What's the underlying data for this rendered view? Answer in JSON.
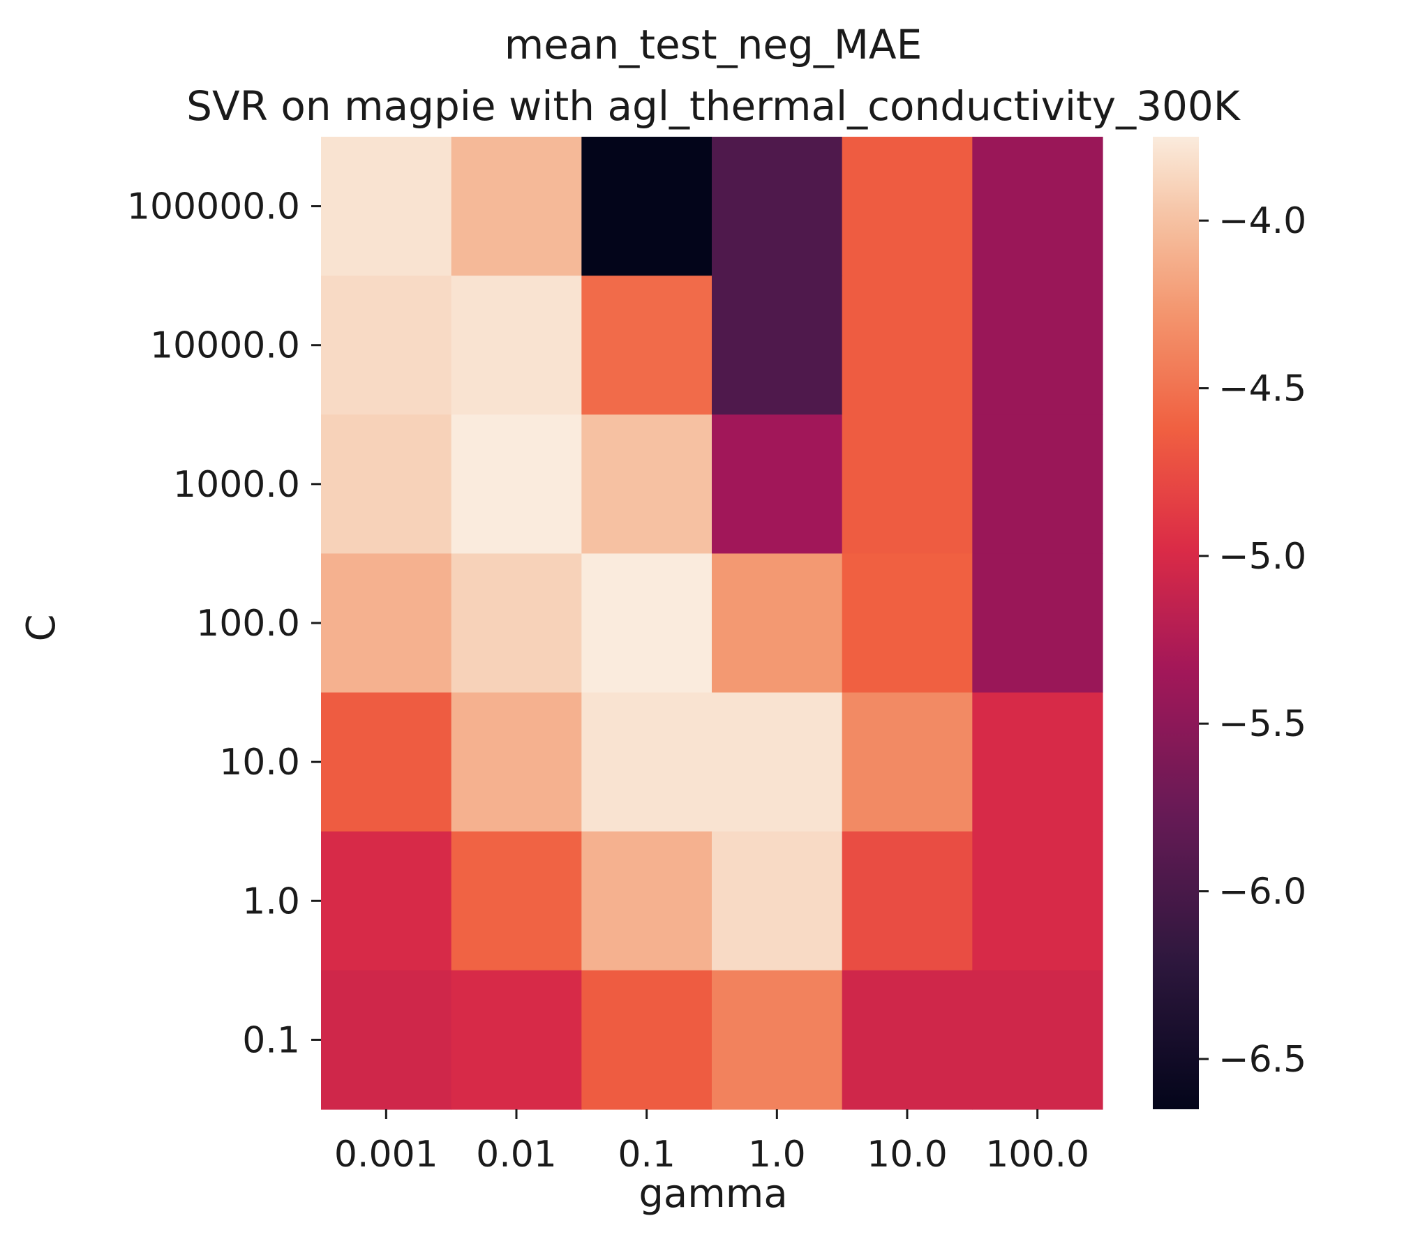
{
  "chart_data": {
    "type": "heatmap",
    "title": "mean_test_neg_MAE",
    "subtitle": "SVR on magpie with agl_thermal_conductivity_300K",
    "xlabel": "gamma",
    "ylabel": "C",
    "x_categories": [
      "0.001",
      "0.01",
      "0.1",
      "1.0",
      "10.0",
      "100.0"
    ],
    "y_categories": [
      "100000.0",
      "10000.0",
      "1000.0",
      "100.0",
      "10.0",
      "1.0",
      "0.1"
    ],
    "values": [
      [
        -3.8,
        -4.05,
        -6.65,
        -5.95,
        -4.65,
        -5.4
      ],
      [
        -3.85,
        -3.8,
        -4.55,
        -5.95,
        -4.65,
        -5.4
      ],
      [
        -3.9,
        -3.75,
        -4.0,
        -5.35,
        -4.65,
        -5.4
      ],
      [
        -4.1,
        -3.9,
        -3.75,
        -4.25,
        -4.62,
        -5.4
      ],
      [
        -4.65,
        -4.1,
        -3.8,
        -3.8,
        -4.35,
        -5.0
      ],
      [
        -5.0,
        -4.6,
        -4.1,
        -3.85,
        -4.75,
        -5.0
      ],
      [
        -5.05,
        -5.0,
        -4.65,
        -4.4,
        -5.05,
        -5.05
      ]
    ],
    "colorbar": {
      "vmin": -6.65,
      "vmax": -3.75,
      "ticks": [
        -4.0,
        -4.5,
        -5.0,
        -5.5,
        -6.0,
        -6.5
      ],
      "tick_labels": [
        "−4.0",
        "−4.5",
        "−5.0",
        "−5.5",
        "−6.0",
        "−6.5"
      ],
      "colormap": "rocket"
    },
    "grid": false
  }
}
